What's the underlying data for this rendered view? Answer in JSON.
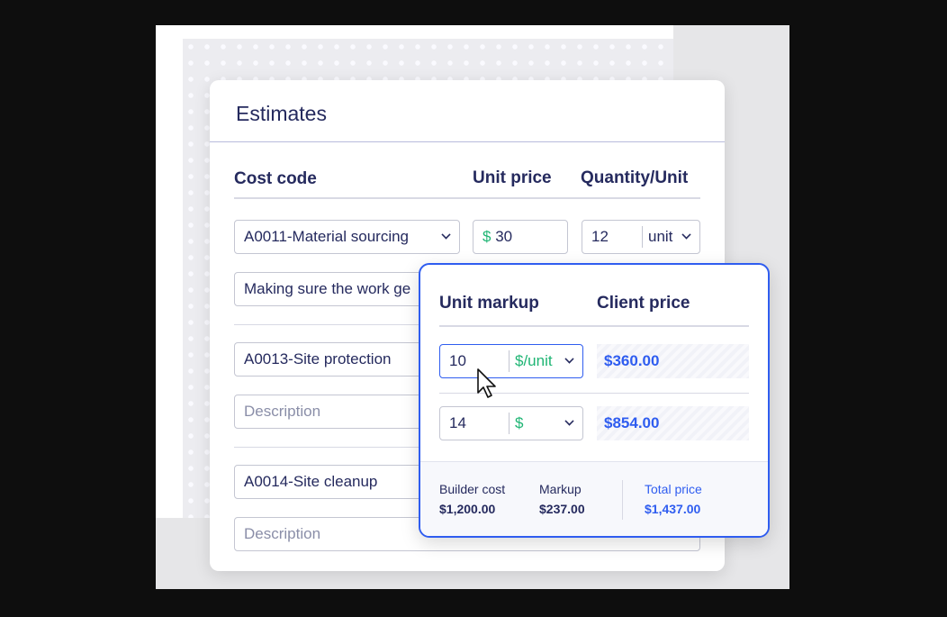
{
  "card": {
    "title": "Estimates",
    "headers": {
      "cost_code": "Cost code",
      "unit_price": "Unit price",
      "quantity": "Quantity/Unit"
    },
    "rows": [
      {
        "cost_code": "A0011-Material sourcing",
        "currency": "$",
        "unit_price": "30",
        "quantity": "12",
        "unit": "unit",
        "description": "Making sure the work ge"
      },
      {
        "cost_code": "A0013-Site protection",
        "description_placeholder": "Description"
      },
      {
        "cost_code": "A0014-Site cleanup",
        "description_placeholder": "Description"
      }
    ]
  },
  "popup": {
    "headers": {
      "markup": "Unit markup",
      "client_price": "Client price"
    },
    "rows": [
      {
        "markup": "10",
        "type": "$/unit",
        "client_price": "$360.00"
      },
      {
        "markup": "14",
        "type": "$",
        "client_price": "$854.00"
      }
    ],
    "footer": {
      "builder_cost_label": "Builder cost",
      "builder_cost": "$1,200.00",
      "markup_label": "Markup",
      "markup": "$237.00",
      "total_label": "Total price",
      "total": "$1,437.00"
    }
  },
  "colors": {
    "accent": "#2f5df0",
    "green": "#1fb574",
    "text": "#252a5e"
  }
}
